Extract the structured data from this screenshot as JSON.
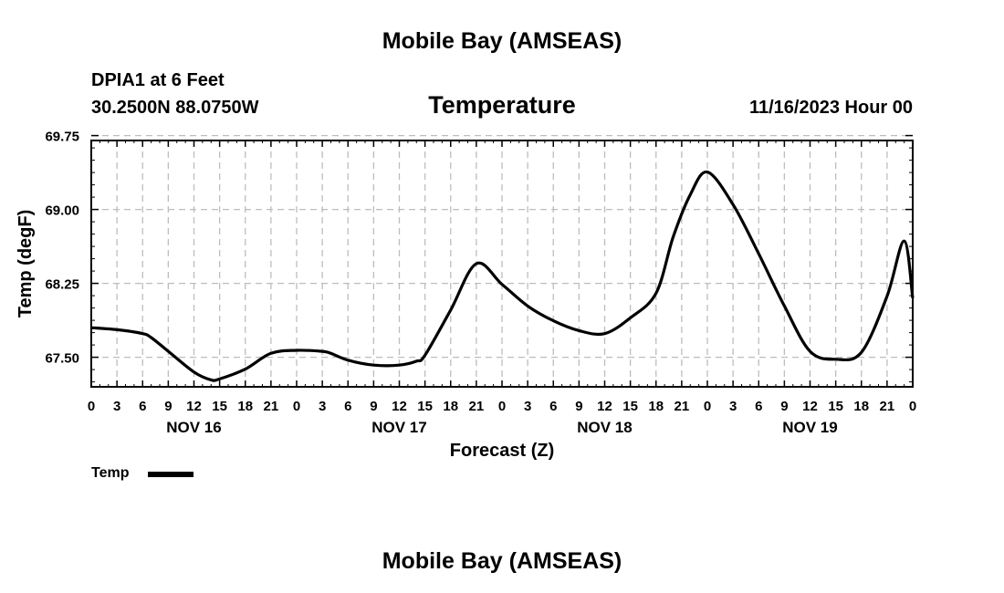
{
  "header": {
    "title": "Mobile Bay (AMSEAS)",
    "station": "DPIA1 at 6 Feet",
    "coords": "30.2500N  88.0750W",
    "variable": "Temperature",
    "datetime": "11/16/2023 Hour 00"
  },
  "footer": {
    "title": "Mobile Bay (AMSEAS)"
  },
  "legend": {
    "label": "Temp",
    "color": "#000000"
  },
  "chart_data": {
    "type": "line",
    "title": "Temperature",
    "xlabel": "Forecast (Z)",
    "ylabel": "Temp (degF)",
    "xlim": [
      0,
      96
    ],
    "ylim": [
      67.2,
      69.7
    ],
    "grid": true,
    "y_ticks": [
      67.5,
      68.25,
      69.0,
      69.75
    ],
    "y_tick_labels": [
      "67.50",
      "68.25",
      "69.00",
      "69.75"
    ],
    "x_ticks": [
      0,
      3,
      6,
      9,
      12,
      15,
      18,
      21,
      24,
      27,
      30,
      33,
      36,
      39,
      42,
      45,
      48,
      51,
      54,
      57,
      60,
      63,
      66,
      69,
      72,
      75,
      78,
      81,
      84,
      87,
      90,
      93,
      96
    ],
    "x_tick_labels": [
      "0",
      "3",
      "6",
      "9",
      "12",
      "15",
      "18",
      "21",
      "0",
      "3",
      "6",
      "9",
      "12",
      "15",
      "18",
      "21",
      "0",
      "3",
      "6",
      "9",
      "12",
      "15",
      "18",
      "21",
      "0",
      "3",
      "6",
      "9",
      "12",
      "15",
      "18",
      "21",
      "0"
    ],
    "day_labels": [
      {
        "x": 12,
        "label": "NOV 16"
      },
      {
        "x": 36,
        "label": "NOV 17"
      },
      {
        "x": 60,
        "label": "NOV 18"
      },
      {
        "x": 84,
        "label": "NOV 19"
      }
    ],
    "series": [
      {
        "name": "Temp",
        "color": "#000000",
        "x": [
          0,
          3,
          6,
          7,
          9,
          12,
          14,
          15,
          18,
          21,
          24,
          27,
          28,
          30,
          33,
          36,
          38,
          39,
          42,
          45,
          48,
          51,
          54,
          57,
          60,
          63,
          66,
          68,
          70,
          72,
          75,
          78,
          81,
          84,
          87,
          90,
          93,
          95,
          96
        ],
        "values": [
          67.8,
          67.78,
          67.74,
          67.7,
          67.56,
          67.35,
          67.27,
          67.28,
          67.38,
          67.54,
          67.57,
          67.56,
          67.54,
          67.47,
          67.42,
          67.42,
          67.46,
          67.52,
          67.98,
          68.45,
          68.24,
          68.02,
          67.87,
          67.77,
          67.74,
          67.9,
          68.15,
          68.72,
          69.15,
          69.38,
          69.05,
          68.55,
          68.02,
          67.56,
          67.48,
          67.55,
          68.12,
          68.68,
          68.1
        ]
      }
    ]
  }
}
